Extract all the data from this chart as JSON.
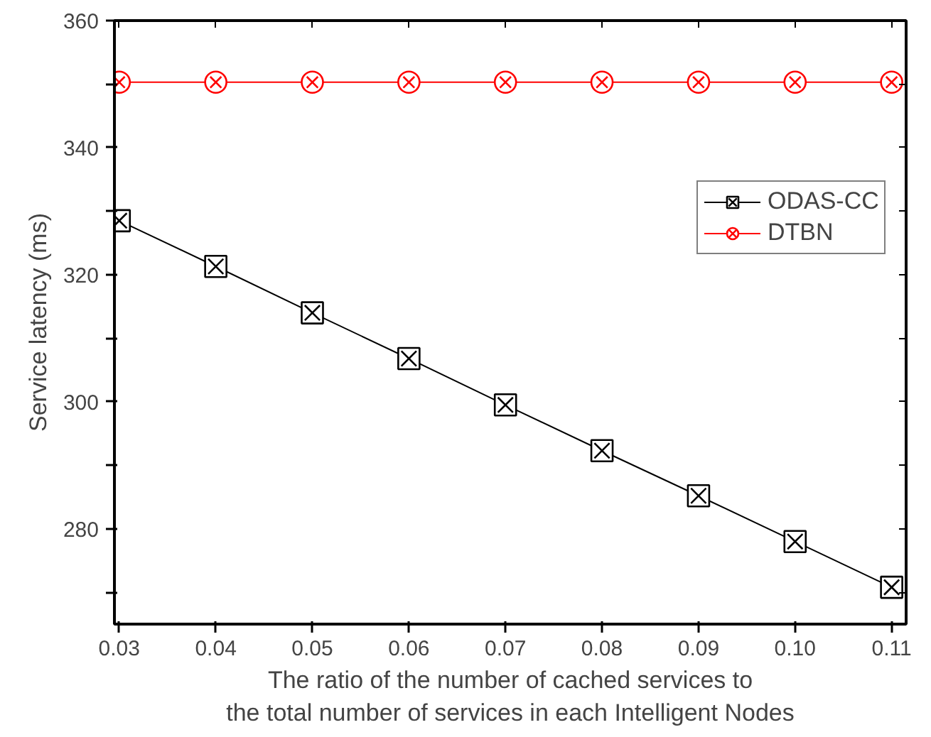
{
  "chart_data": {
    "type": "line",
    "xlabel": "The ratio of the number of cached services to\nthe total number of services in each Intelligent Nodes",
    "ylabel": "Service latency (ms)",
    "x": [
      0.03,
      0.04,
      0.05,
      0.06,
      0.07,
      0.08,
      0.09,
      0.1,
      0.11
    ],
    "series": [
      {
        "name": "ODAS-CC",
        "color": "#000000",
        "marker": "square",
        "values": [
          328.5,
          321.3,
          314.0,
          306.8,
          299.5,
          292.3,
          285.2,
          278.0,
          270.8
        ]
      },
      {
        "name": "DTBN",
        "color": "#ff0000",
        "marker": "circle",
        "values": [
          350.3,
          350.3,
          350.3,
          350.3,
          350.3,
          350.3,
          350.3,
          350.3,
          350.3
        ]
      }
    ],
    "xlim": [
      0.0295,
      0.1115
    ],
    "ylim": [
      265,
      360
    ],
    "xticks": [
      {
        "value": 0.03,
        "label": "0.03"
      },
      {
        "value": 0.04,
        "label": "0.04"
      },
      {
        "value": 0.05,
        "label": "0.05"
      },
      {
        "value": 0.06,
        "label": "0.06"
      },
      {
        "value": 0.07,
        "label": "0.07"
      },
      {
        "value": 0.08,
        "label": "0.08"
      },
      {
        "value": 0.09,
        "label": "0.09"
      },
      {
        "value": 0.1,
        "label": "0.10"
      },
      {
        "value": 0.11,
        "label": "0.11"
      }
    ],
    "yticks": [
      {
        "value": 270,
        "label": null
      },
      280,
      {
        "value": 290,
        "label": null
      },
      300,
      {
        "value": 310,
        "label": null
      },
      320,
      {
        "value": 330,
        "label": null
      },
      340,
      {
        "value": 350,
        "label": null
      },
      360
    ],
    "grid": false,
    "legend": "right",
    "line_style": "solid"
  }
}
